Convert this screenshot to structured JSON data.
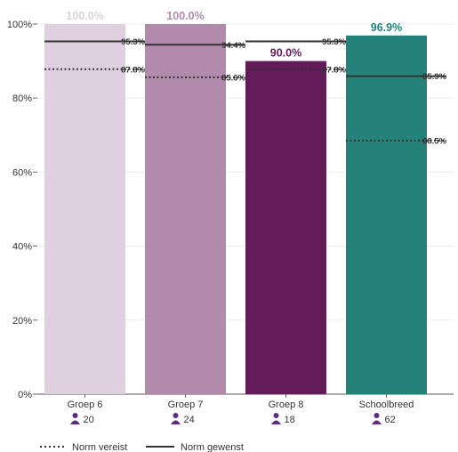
{
  "chart_data": {
    "type": "bar",
    "categories": [
      "Groep 6",
      "Groep 7",
      "Groep 8",
      "Schoolbreed"
    ],
    "values": [
      100.0,
      100.0,
      90.0,
      96.9
    ],
    "value_labels": [
      "100.0%",
      "100.0%",
      "90.0%",
      "96.9%"
    ],
    "counts": [
      "20",
      "24",
      "18",
      "62"
    ],
    "count_icon": "person-icon",
    "colors": [
      "#dfd0e0",
      "#b28aac",
      "#631c59",
      "#24827a"
    ],
    "label_colors": [
      "#dfd0e0",
      "#b28aac",
      "#631c59",
      "#24827a"
    ],
    "series": [
      {
        "name": "Norm vereist",
        "style": "dotted",
        "values": [
          87.8,
          85.6,
          87.8,
          68.5
        ],
        "labels": [
          "87.8%",
          "85.6%",
          "87.8%",
          "68.5%"
        ]
      },
      {
        "name": "Norm gewenst",
        "style": "solid",
        "values": [
          95.3,
          94.4,
          95.3,
          85.9
        ],
        "labels": [
          "95.3%",
          "94.4%",
          "95.3%",
          "85.9%"
        ]
      }
    ],
    "y_ticks": [
      "0%",
      "20%",
      "40%",
      "60%",
      "80%",
      "100%"
    ],
    "ylim": [
      0,
      100
    ],
    "grid": true,
    "legend_position": "bottom-left"
  }
}
